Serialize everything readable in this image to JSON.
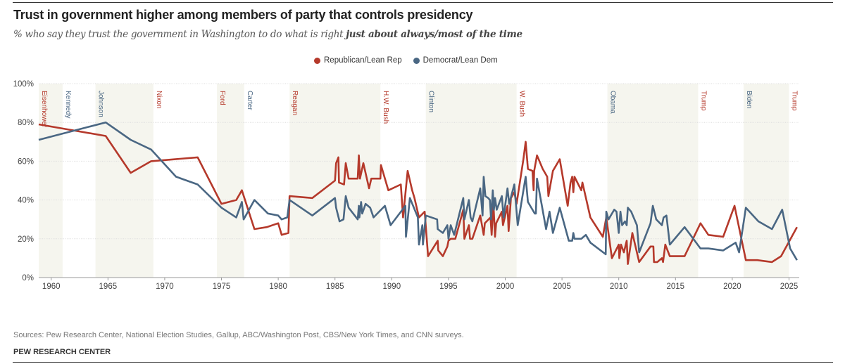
{
  "title": "Trust in government higher among members of party that controls presidency",
  "subtitle_plain": "% who say they trust the government in Washington to do what is right ",
  "subtitle_bold": "just about always/most of the time",
  "source": "Sources: Pew Research Center, National Election Studies, Gallup, ABC/Washington Post, CBS/New York Times, and CNN surveys.",
  "brand": "PEW RESEARCH CENTER",
  "colors": {
    "republican": "#b5392b",
    "democrat": "#4a6783",
    "shade": "#f5f5ee"
  },
  "chart_data": {
    "type": "line",
    "title": "Trust in government higher among members of party that controls presidency",
    "xlabel": "",
    "ylabel": "",
    "xlim": [
      1958.9,
      2025.9
    ],
    "ylim": [
      0,
      100
    ],
    "x_ticks": [
      1960,
      1965,
      1970,
      1975,
      1980,
      1985,
      1990,
      1995,
      2000,
      2005,
      2010,
      2015,
      2020,
      2025
    ],
    "x_tick_labels": [
      "1960",
      "1965",
      "1970",
      "1975",
      "1980",
      "1985",
      "1990",
      "1995",
      "2000",
      "2005",
      "2010",
      "2015",
      "2020",
      "2025"
    ],
    "y_ticks": [
      0,
      20,
      40,
      60,
      80,
      100
    ],
    "y_tick_labels": [
      "0%",
      "20%",
      "40%",
      "60%",
      "80%",
      "100%"
    ],
    "grid": true,
    "legend_position": "top-center",
    "presidencies": [
      {
        "name": "Eisenhower",
        "party": "R",
        "start": 1958.9,
        "end": 1961.0,
        "shaded": true
      },
      {
        "name": "Kennedy",
        "party": "D",
        "start": 1961.0,
        "end": 1963.9,
        "shaded": false
      },
      {
        "name": "Johnson",
        "party": "D",
        "start": 1963.9,
        "end": 1969.0,
        "shaded": true
      },
      {
        "name": "Nixon",
        "party": "R",
        "start": 1969.0,
        "end": 1974.6,
        "shaded": false
      },
      {
        "name": "Ford",
        "party": "R",
        "start": 1974.6,
        "end": 1977.0,
        "shaded": true
      },
      {
        "name": "Carter",
        "party": "D",
        "start": 1977.0,
        "end": 1981.0,
        "shaded": false
      },
      {
        "name": "Reagan",
        "party": "R",
        "start": 1981.0,
        "end": 1989.0,
        "shaded": true
      },
      {
        "name": "H.W. Bush",
        "party": "R",
        "start": 1989.0,
        "end": 1993.0,
        "shaded": false
      },
      {
        "name": "Clinton",
        "party": "D",
        "start": 1993.0,
        "end": 2001.0,
        "shaded": true
      },
      {
        "name": "W. Bush",
        "party": "R",
        "start": 2001.0,
        "end": 2009.0,
        "shaded": false
      },
      {
        "name": "Obama",
        "party": "D",
        "start": 2009.0,
        "end": 2017.0,
        "shaded": true
      },
      {
        "name": "Trump",
        "party": "R",
        "start": 2017.0,
        "end": 2021.0,
        "shaded": false
      },
      {
        "name": "Biden",
        "party": "D",
        "start": 2021.0,
        "end": 2025.0,
        "shaded": true
      },
      {
        "name": "Trump",
        "party": "R",
        "start": 2025.0,
        "end": 2025.9,
        "shaded": false
      }
    ],
    "series": [
      {
        "name": "Republican/Lean Rep",
        "color": "#b5392b",
        "points": [
          [
            1958.9,
            79
          ],
          [
            1964.8,
            73
          ],
          [
            1967,
            54
          ],
          [
            1968.8,
            60
          ],
          [
            1972.9,
            62
          ],
          [
            1975,
            38
          ],
          [
            1976.3,
            40
          ],
          [
            1976.8,
            45
          ],
          [
            1977.9,
            25
          ],
          [
            1979,
            26
          ],
          [
            1980,
            28
          ],
          [
            1980.3,
            22
          ],
          [
            1980.9,
            23
          ],
          [
            1981,
            42
          ],
          [
            1983,
            41
          ],
          [
            1985,
            50
          ],
          [
            1985.1,
            59
          ],
          [
            1985.3,
            62
          ],
          [
            1985.35,
            49
          ],
          [
            1985.8,
            48
          ],
          [
            1985.95,
            59
          ],
          [
            1986.2,
            51
          ],
          [
            1987,
            51
          ],
          [
            1987.1,
            63
          ],
          [
            1987.2,
            51
          ],
          [
            1987.5,
            59
          ],
          [
            1988,
            46
          ],
          [
            1988.2,
            51
          ],
          [
            1989,
            51
          ],
          [
            1989.05,
            58
          ],
          [
            1989.7,
            45
          ],
          [
            1990.8,
            48
          ],
          [
            1991,
            31
          ],
          [
            1991.4,
            55
          ],
          [
            1991.8,
            45
          ],
          [
            1992,
            41
          ],
          [
            1992.4,
            31
          ],
          [
            1992.9,
            34
          ],
          [
            1993.2,
            11
          ],
          [
            1994.05,
            19
          ],
          [
            1994.1,
            14
          ],
          [
            1994.5,
            11
          ],
          [
            1994.9,
            16
          ],
          [
            1995,
            19
          ],
          [
            1995.2,
            20
          ],
          [
            1995.6,
            20
          ],
          [
            1996.3,
            35
          ],
          [
            1996.4,
            20
          ],
          [
            1996.8,
            27
          ],
          [
            1996.9,
            20
          ],
          [
            1997.1,
            20
          ],
          [
            1997.8,
            32
          ],
          [
            1998.1,
            22
          ],
          [
            1998.2,
            28
          ],
          [
            1998.7,
            31
          ],
          [
            1998.8,
            22
          ],
          [
            1998.95,
            39
          ],
          [
            1999.1,
            21
          ],
          [
            1999.2,
            28
          ],
          [
            1999.7,
            34
          ],
          [
            1999.8,
            27
          ],
          [
            2000.2,
            37
          ],
          [
            2000.3,
            24
          ],
          [
            2000.5,
            41
          ],
          [
            2000.8,
            44
          ],
          [
            2001,
            38
          ],
          [
            2001.6,
            61
          ],
          [
            2001.8,
            70
          ],
          [
            2002,
            56
          ],
          [
            2002.4,
            55
          ],
          [
            2002.5,
            45
          ],
          [
            2002.55,
            55
          ],
          [
            2002.8,
            63
          ],
          [
            2003.3,
            56
          ],
          [
            2003.7,
            52
          ],
          [
            2003.8,
            42
          ],
          [
            2004.2,
            55
          ],
          [
            2004.8,
            61
          ],
          [
            2005.5,
            37
          ],
          [
            2005.75,
            49
          ],
          [
            2005.9,
            52
          ],
          [
            2006,
            44
          ],
          [
            2006.1,
            52
          ],
          [
            2006.7,
            45
          ],
          [
            2006.8,
            49
          ],
          [
            2007.5,
            31
          ],
          [
            2008.6,
            21
          ],
          [
            2008.9,
            31
          ],
          [
            2009.4,
            10
          ],
          [
            2010,
            17
          ],
          [
            2010.05,
            10
          ],
          [
            2010.2,
            17
          ],
          [
            2010.45,
            13
          ],
          [
            2010.7,
            19
          ],
          [
            2010.8,
            7
          ],
          [
            2011.2,
            23
          ],
          [
            2011.8,
            8
          ],
          [
            2012.8,
            16
          ],
          [
            2013.05,
            16
          ],
          [
            2013.1,
            8
          ],
          [
            2013.4,
            8
          ],
          [
            2013.8,
            10
          ],
          [
            2013.9,
            8
          ],
          [
            2014.1,
            17
          ],
          [
            2014.5,
            11
          ],
          [
            2015.8,
            11
          ],
          [
            2017.2,
            28
          ],
          [
            2017.9,
            22
          ],
          [
            2019.2,
            21
          ],
          [
            2020.2,
            37
          ],
          [
            2021.2,
            9
          ],
          [
            2022.2,
            9
          ],
          [
            2023.5,
            8
          ],
          [
            2024.3,
            11
          ],
          [
            2025.7,
            26
          ]
        ]
      },
      {
        "name": "Democrat/Lean Dem",
        "color": "#4a6783",
        "points": [
          [
            1958.9,
            71
          ],
          [
            1964.8,
            80
          ],
          [
            1967,
            71
          ],
          [
            1968.8,
            66
          ],
          [
            1971,
            52
          ],
          [
            1972.9,
            48
          ],
          [
            1975,
            36
          ],
          [
            1976.3,
            31
          ],
          [
            1976.8,
            39
          ],
          [
            1976.95,
            30
          ],
          [
            1977.9,
            40
          ],
          [
            1979.1,
            33
          ],
          [
            1980,
            32
          ],
          [
            1980.3,
            30
          ],
          [
            1980.8,
            31
          ],
          [
            1981,
            40
          ],
          [
            1983,
            32
          ],
          [
            1985,
            41
          ],
          [
            1985.1,
            36
          ],
          [
            1985.4,
            29
          ],
          [
            1985.75,
            30
          ],
          [
            1985.95,
            42
          ],
          [
            1986.2,
            36
          ],
          [
            1987,
            30
          ],
          [
            1987.1,
            37
          ],
          [
            1987.15,
            31
          ],
          [
            1987.3,
            39
          ],
          [
            1987.4,
            33
          ],
          [
            1987.7,
            38
          ],
          [
            1988.1,
            36
          ],
          [
            1988.4,
            31
          ],
          [
            1989.4,
            37
          ],
          [
            1989.9,
            27
          ],
          [
            1991.2,
            37
          ],
          [
            1991.25,
            21
          ],
          [
            1991.6,
            41
          ],
          [
            1992.3,
            31
          ],
          [
            1992.4,
            17
          ],
          [
            1992.7,
            27
          ],
          [
            1992.75,
            17
          ],
          [
            1993,
            32
          ],
          [
            1994,
            30
          ],
          [
            1994.05,
            25
          ],
          [
            1994.5,
            23
          ],
          [
            1994.9,
            27
          ],
          [
            1995,
            20
          ],
          [
            1995.2,
            27
          ],
          [
            1995.5,
            22
          ],
          [
            1996.3,
            41
          ],
          [
            1996.4,
            30
          ],
          [
            1996.8,
            40
          ],
          [
            1996.95,
            31
          ],
          [
            1997.1,
            29
          ],
          [
            1997.8,
            46
          ],
          [
            1998,
            32
          ],
          [
            1998.1,
            52
          ],
          [
            1998.25,
            42
          ],
          [
            1998.5,
            41
          ],
          [
            1998.65,
            40
          ],
          [
            1998.75,
            30
          ],
          [
            1998.9,
            45
          ],
          [
            1999,
            35
          ],
          [
            1999.1,
            41
          ],
          [
            1999.25,
            35
          ],
          [
            1999.7,
            42
          ],
          [
            1999.85,
            31
          ],
          [
            2000.2,
            46
          ],
          [
            2000.35,
            38
          ],
          [
            2000.8,
            48
          ],
          [
            2001.1,
            27
          ],
          [
            2001.8,
            52
          ],
          [
            2002,
            39
          ],
          [
            2002.6,
            33
          ],
          [
            2002.7,
            33
          ],
          [
            2002.8,
            51
          ],
          [
            2003.6,
            25
          ],
          [
            2003.9,
            34
          ],
          [
            2004.2,
            23
          ],
          [
            2004.8,
            36
          ],
          [
            2005.6,
            19
          ],
          [
            2005.9,
            19
          ],
          [
            2006,
            23
          ],
          [
            2006.1,
            20
          ],
          [
            2006.7,
            20
          ],
          [
            2007.1,
            22
          ],
          [
            2007.5,
            18
          ],
          [
            2008.85,
            12
          ],
          [
            2008.9,
            34
          ],
          [
            2009.1,
            30
          ],
          [
            2009.6,
            35
          ],
          [
            2009.8,
            34
          ],
          [
            2010,
            23
          ],
          [
            2010.15,
            34
          ],
          [
            2010.3,
            27
          ],
          [
            2010.55,
            29
          ],
          [
            2010.7,
            27
          ],
          [
            2010.8,
            36
          ],
          [
            2011.1,
            34
          ],
          [
            2011.6,
            27
          ],
          [
            2011.8,
            13
          ],
          [
            2012.8,
            28
          ],
          [
            2013,
            37
          ],
          [
            2013.3,
            30
          ],
          [
            2013.8,
            27
          ],
          [
            2013.95,
            31
          ],
          [
            2014.2,
            32
          ],
          [
            2014.5,
            17
          ],
          [
            2015.8,
            26
          ],
          [
            2017.2,
            15
          ],
          [
            2017.9,
            15
          ],
          [
            2019.2,
            14
          ],
          [
            2020.3,
            18
          ],
          [
            2020.6,
            13
          ],
          [
            2021.2,
            36
          ],
          [
            2022.3,
            29
          ],
          [
            2023.5,
            25
          ],
          [
            2024.4,
            35
          ],
          [
            2025.1,
            15
          ],
          [
            2025.7,
            9
          ]
        ]
      }
    ]
  }
}
